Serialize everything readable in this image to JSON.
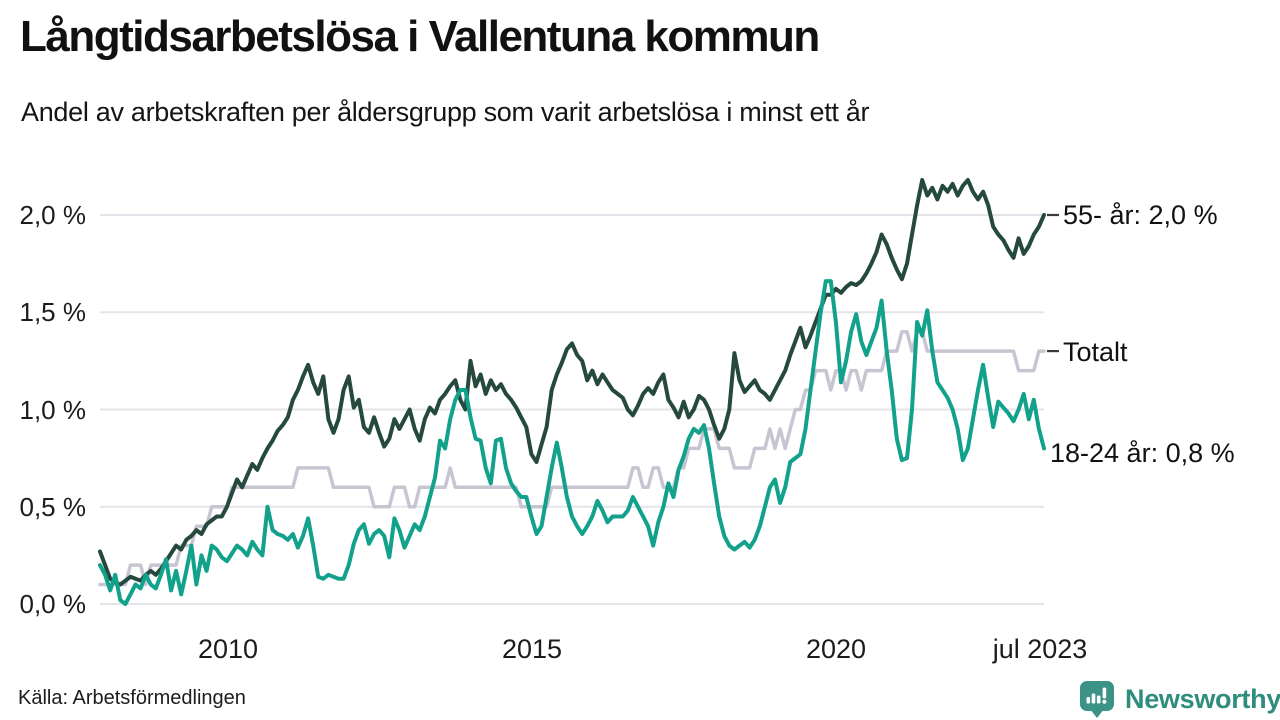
{
  "header": {
    "title": "Långtidsarbetslösa i Vallentuna kommun",
    "subtitle": "Andel av arbetskraften per åldersgrupp som varit arbetslösa i minst ett år"
  },
  "footer": {
    "source": "Källa: Arbetsförmedlingen",
    "brand": "Newsworthy"
  },
  "chart_data": {
    "type": "line",
    "title": "Långtidsarbetslösa i Vallentuna kommun",
    "subtitle": "Andel av arbetskraften per åldersgrupp som varit arbetslösa i minst ett år",
    "x_start": "jan 2008",
    "x_end": "jul 2023",
    "frequency": "monthly",
    "grid": "horizontal",
    "grid_color": "#e5e4ea",
    "tick_color": "#3a3a3a",
    "ylim": [
      0,
      2.25
    ],
    "y_grid_values": [
      0,
      0.5,
      1.0,
      1.5,
      2.0
    ],
    "y_tick_labels": [
      "2,0 %",
      "1,5 %",
      "1,0 %",
      "0,5 %",
      "0,0 %"
    ],
    "x_tick_labels": [
      "2010",
      "2015",
      "2020",
      "jul 2023"
    ],
    "draw_order": [
      1,
      0,
      2
    ],
    "series": [
      {
        "name": "55- år",
        "end_label": "55- år: 2,0 %",
        "end_value": 2.0,
        "color": "#26493f",
        "end_tick": true,
        "values": [
          0.27,
          0.2,
          0.13,
          0.11,
          0.1,
          0.12,
          0.14,
          0.13,
          0.12,
          0.15,
          0.17,
          0.15,
          0.18,
          0.22,
          0.26,
          0.3,
          0.28,
          0.33,
          0.35,
          0.38,
          0.36,
          0.41,
          0.43,
          0.45,
          0.45,
          0.5,
          0.57,
          0.64,
          0.6,
          0.66,
          0.72,
          0.69,
          0.75,
          0.8,
          0.84,
          0.89,
          0.92,
          0.96,
          1.05,
          1.1,
          1.17,
          1.23,
          1.14,
          1.08,
          1.17,
          0.95,
          0.88,
          0.95,
          1.1,
          1.17,
          1.01,
          1.05,
          0.91,
          0.88,
          0.96,
          0.88,
          0.81,
          0.85,
          0.95,
          0.9,
          0.95,
          1.0,
          0.9,
          0.84,
          0.95,
          1.01,
          0.98,
          1.05,
          1.08,
          1.12,
          1.15,
          1.05,
          1.0,
          1.25,
          1.12,
          1.18,
          1.08,
          1.15,
          1.1,
          1.13,
          1.08,
          1.05,
          1.01,
          0.96,
          0.91,
          0.77,
          0.73,
          0.82,
          0.91,
          1.1,
          1.18,
          1.24,
          1.31,
          1.34,
          1.28,
          1.25,
          1.15,
          1.2,
          1.13,
          1.18,
          1.14,
          1.1,
          1.08,
          1.06,
          1.0,
          0.97,
          1.02,
          1.08,
          1.11,
          1.08,
          1.14,
          1.18,
          1.05,
          1.01,
          0.96,
          1.04,
          0.96,
          1.0,
          1.07,
          1.05,
          1.0,
          0.92,
          0.85,
          0.9,
          1.0,
          1.29,
          1.15,
          1.09,
          1.12,
          1.15,
          1.1,
          1.08,
          1.05,
          1.1,
          1.15,
          1.2,
          1.28,
          1.35,
          1.42,
          1.32,
          1.38,
          1.45,
          1.52,
          1.59,
          1.59,
          1.62,
          1.6,
          1.63,
          1.65,
          1.64,
          1.66,
          1.7,
          1.75,
          1.81,
          1.9,
          1.85,
          1.78,
          1.72,
          1.67,
          1.75,
          1.9,
          2.05,
          2.18,
          2.1,
          2.14,
          2.08,
          2.15,
          2.12,
          2.16,
          2.1,
          2.15,
          2.18,
          2.12,
          2.08,
          2.12,
          2.05,
          1.94,
          1.9,
          1.87,
          1.82,
          1.78,
          1.88,
          1.8,
          1.84,
          1.9,
          1.94,
          2.0
        ]
      },
      {
        "name": "Totalt",
        "end_label": "Totalt",
        "end_value": 1.3,
        "color": "#c8c5d3",
        "end_tick": true,
        "values": [
          0.1,
          0.1,
          0.1,
          0.1,
          0.1,
          0.1,
          0.2,
          0.2,
          0.2,
          0.1,
          0.2,
          0.2,
          0.2,
          0.2,
          0.2,
          0.2,
          0.3,
          0.3,
          0.3,
          0.4,
          0.4,
          0.4,
          0.5,
          0.5,
          0.5,
          0.5,
          0.6,
          0.6,
          0.6,
          0.6,
          0.6,
          0.6,
          0.6,
          0.6,
          0.6,
          0.6,
          0.6,
          0.6,
          0.6,
          0.7,
          0.7,
          0.7,
          0.7,
          0.7,
          0.7,
          0.7,
          0.6,
          0.6,
          0.6,
          0.6,
          0.6,
          0.6,
          0.6,
          0.6,
          0.5,
          0.5,
          0.5,
          0.5,
          0.6,
          0.6,
          0.6,
          0.5,
          0.5,
          0.6,
          0.6,
          0.6,
          0.6,
          0.6,
          0.6,
          0.7,
          0.6,
          0.6,
          0.6,
          0.6,
          0.6,
          0.6,
          0.6,
          0.6,
          0.6,
          0.6,
          0.6,
          0.6,
          0.6,
          0.5,
          0.5,
          0.5,
          0.5,
          0.5,
          0.5,
          0.6,
          0.6,
          0.6,
          0.6,
          0.6,
          0.6,
          0.6,
          0.6,
          0.6,
          0.6,
          0.6,
          0.6,
          0.6,
          0.6,
          0.6,
          0.6,
          0.7,
          0.7,
          0.6,
          0.6,
          0.7,
          0.7,
          0.6,
          0.6,
          0.6,
          0.7,
          0.7,
          0.8,
          0.8,
          0.8,
          0.9,
          0.9,
          0.9,
          0.8,
          0.8,
          0.8,
          0.7,
          0.7,
          0.7,
          0.7,
          0.8,
          0.8,
          0.8,
          0.9,
          0.8,
          0.9,
          0.8,
          0.9,
          1.0,
          1.0,
          1.1,
          1.1,
          1.2,
          1.2,
          1.2,
          1.1,
          1.2,
          1.2,
          1.1,
          1.2,
          1.2,
          1.1,
          1.2,
          1.2,
          1.2,
          1.2,
          1.3,
          1.3,
          1.3,
          1.4,
          1.4,
          1.3,
          1.4,
          1.4,
          1.3,
          1.3,
          1.3,
          1.3,
          1.3,
          1.3,
          1.3,
          1.3,
          1.3,
          1.3,
          1.3,
          1.3,
          1.3,
          1.3,
          1.3,
          1.3,
          1.3,
          1.3,
          1.2,
          1.2,
          1.2,
          1.2,
          1.3,
          1.3
        ]
      },
      {
        "name": "18-24 år",
        "end_label": "18-24 år: 0,8 %",
        "end_value": 0.8,
        "color": "#12a18b",
        "end_tick": false,
        "values": [
          0.2,
          0.15,
          0.07,
          0.15,
          0.02,
          0.0,
          0.05,
          0.1,
          0.08,
          0.15,
          0.1,
          0.08,
          0.15,
          0.23,
          0.07,
          0.17,
          0.05,
          0.17,
          0.3,
          0.1,
          0.25,
          0.17,
          0.3,
          0.28,
          0.24,
          0.22,
          0.26,
          0.3,
          0.28,
          0.25,
          0.32,
          0.28,
          0.25,
          0.5,
          0.38,
          0.36,
          0.35,
          0.33,
          0.36,
          0.29,
          0.35,
          0.44,
          0.3,
          0.14,
          0.13,
          0.15,
          0.14,
          0.13,
          0.13,
          0.2,
          0.31,
          0.38,
          0.41,
          0.31,
          0.36,
          0.38,
          0.35,
          0.24,
          0.44,
          0.38,
          0.29,
          0.35,
          0.41,
          0.38,
          0.45,
          0.55,
          0.65,
          0.84,
          0.8,
          0.95,
          1.05,
          1.1,
          1.1,
          0.96,
          0.85,
          0.84,
          0.7,
          0.62,
          0.84,
          0.85,
          0.7,
          0.62,
          0.58,
          0.55,
          0.55,
          0.45,
          0.36,
          0.4,
          0.55,
          0.7,
          0.83,
          0.7,
          0.55,
          0.45,
          0.4,
          0.36,
          0.4,
          0.45,
          0.53,
          0.48,
          0.42,
          0.45,
          0.45,
          0.45,
          0.48,
          0.55,
          0.5,
          0.45,
          0.4,
          0.3,
          0.42,
          0.5,
          0.62,
          0.55,
          0.69,
          0.76,
          0.85,
          0.9,
          0.88,
          0.92,
          0.8,
          0.62,
          0.45,
          0.35,
          0.3,
          0.28,
          0.3,
          0.32,
          0.29,
          0.33,
          0.4,
          0.5,
          0.6,
          0.64,
          0.52,
          0.6,
          0.73,
          0.75,
          0.77,
          0.9,
          1.1,
          1.3,
          1.5,
          1.66,
          1.66,
          1.45,
          1.14,
          1.25,
          1.4,
          1.49,
          1.35,
          1.28,
          1.35,
          1.42,
          1.56,
          1.3,
          1.1,
          0.85,
          0.74,
          0.75,
          1.0,
          1.45,
          1.38,
          1.51,
          1.3,
          1.14,
          1.1,
          1.06,
          1.0,
          0.9,
          0.74,
          0.8,
          0.95,
          1.1,
          1.23,
          1.06,
          0.91,
          1.04,
          1.01,
          0.98,
          0.94,
          1.0,
          1.08,
          0.95,
          1.05,
          0.9,
          0.8
        ]
      }
    ],
    "brand_colors": {
      "icon": "#3b9386",
      "wordmark": "#2f8d7e"
    }
  }
}
